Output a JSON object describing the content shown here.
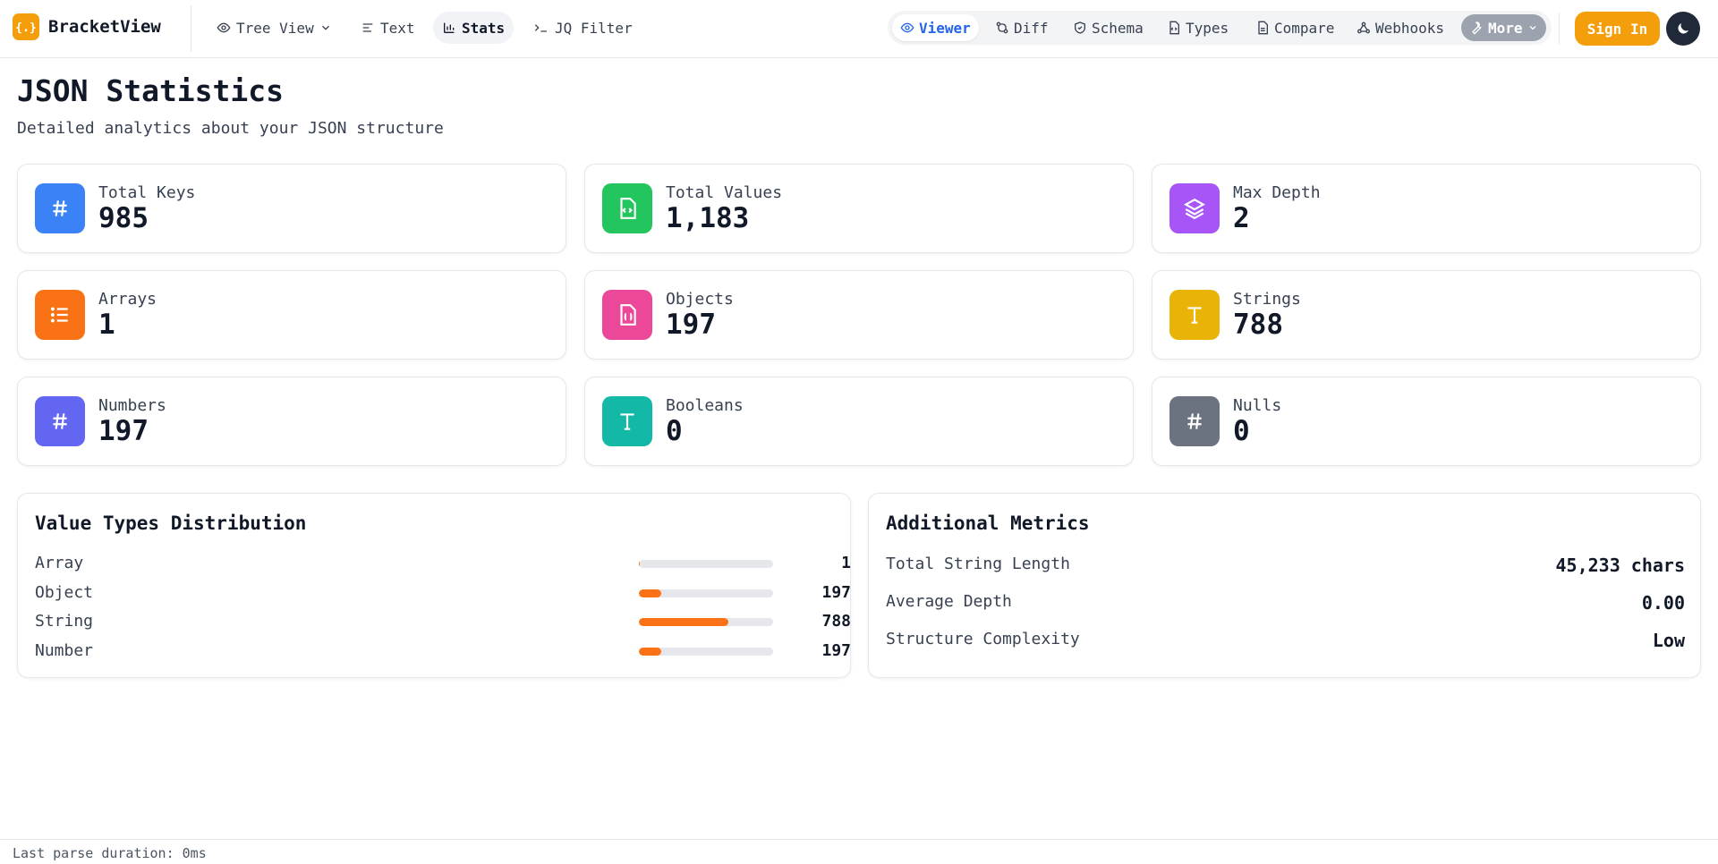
{
  "app": {
    "name": "BracketView",
    "logo_glyph": "{.}"
  },
  "nav": {
    "tree_view": "Tree View",
    "text": "Text",
    "stats": "Stats",
    "jq_filter": "JQ Filter",
    "active": "Stats"
  },
  "modes": {
    "viewer": "Viewer",
    "diff": "Diff",
    "schema": "Schema",
    "types": "Types",
    "compare": "Compare",
    "webhooks": "Webhooks",
    "more": "More",
    "active": "Viewer"
  },
  "auth": {
    "sign_in": "Sign In"
  },
  "page": {
    "title": "JSON Statistics",
    "subtitle": "Detailed analytics about your JSON structure"
  },
  "stats": [
    {
      "label": "Total Keys",
      "value": "985",
      "icon": "hash-icon",
      "color": "#3b82f6"
    },
    {
      "label": "Total Values",
      "value": "1,183",
      "icon": "file-code-icon",
      "color": "#22c55e"
    },
    {
      "label": "Max Depth",
      "value": "2",
      "icon": "layers-icon",
      "color": "#a855f7"
    },
    {
      "label": "Arrays",
      "value": "1",
      "icon": "list-icon",
      "color": "#f97316"
    },
    {
      "label": "Objects",
      "value": "197",
      "icon": "file-braces-icon",
      "color": "#ec4899"
    },
    {
      "label": "Strings",
      "value": "788",
      "icon": "type-icon",
      "color": "#eab308"
    },
    {
      "label": "Numbers",
      "value": "197",
      "icon": "hash-icon",
      "color": "#6366f1"
    },
    {
      "label": "Booleans",
      "value": "0",
      "icon": "type-icon",
      "color": "#14b8a6"
    },
    {
      "label": "Nulls",
      "value": "0",
      "icon": "hash-icon",
      "color": "#6b7280"
    }
  ],
  "distribution": {
    "title": "Value Types Distribution",
    "rows": [
      {
        "name": "Array",
        "value": "1",
        "fraction": 0.001
      },
      {
        "name": "Object",
        "value": "197",
        "fraction": 0.167
      },
      {
        "name": "String",
        "value": "788",
        "fraction": 0.666
      },
      {
        "name": "Number",
        "value": "197",
        "fraction": 0.167
      }
    ],
    "bar_color": "#f97316"
  },
  "metrics": {
    "title": "Additional Metrics",
    "rows": [
      {
        "name": "Total String Length",
        "value": "45,233 chars"
      },
      {
        "name": "Average Depth",
        "value": "0.00"
      },
      {
        "name": "Structure Complexity",
        "value": "Low"
      }
    ]
  },
  "footer": {
    "status": "Last parse duration: 0ms"
  },
  "colors": {
    "accent": "#f59e0b",
    "link": "#2563eb"
  }
}
